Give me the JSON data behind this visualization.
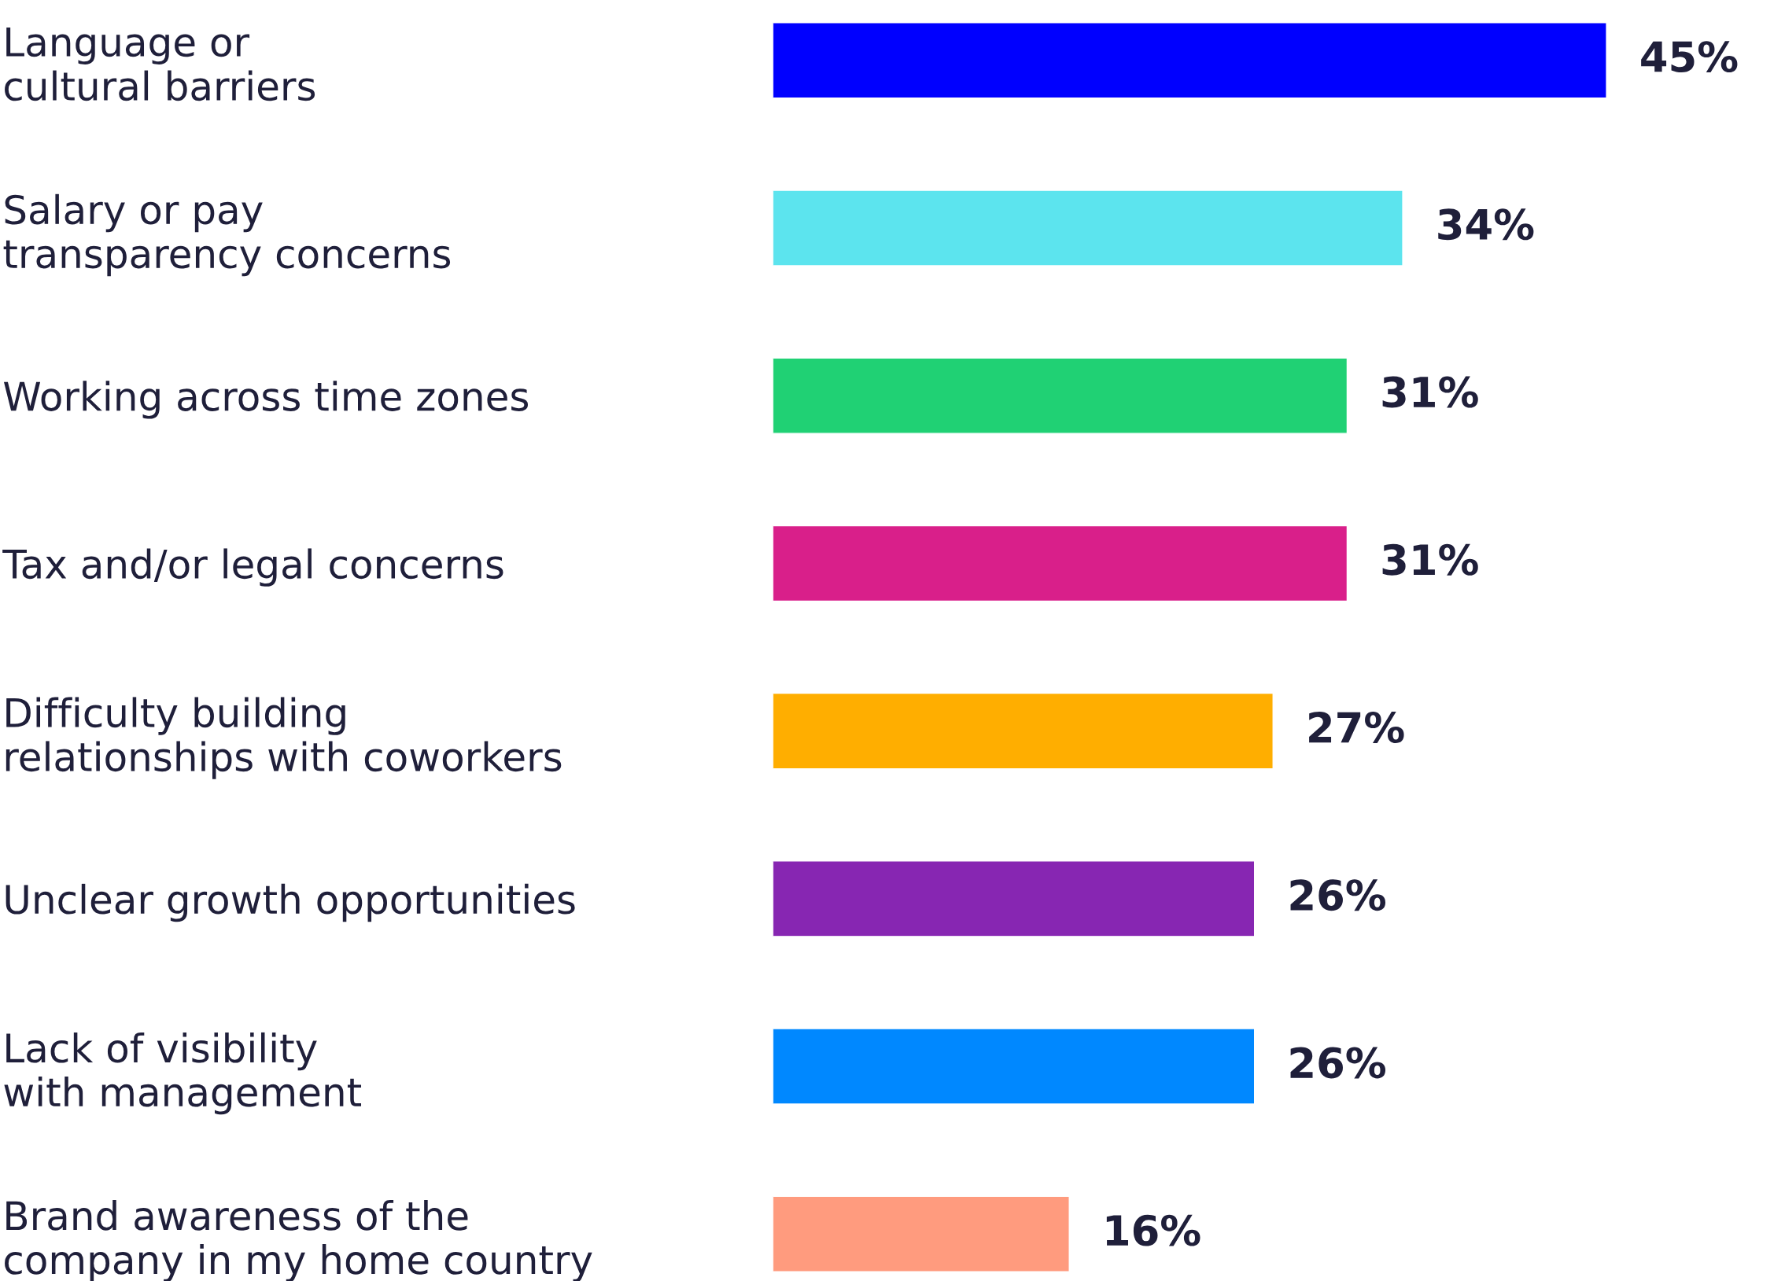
{
  "chart_data": {
    "type": "bar",
    "orientation": "horizontal",
    "tick_labels": "y",
    "grid": false,
    "legend": false,
    "categories": [
      "Language or\ncultural barriers",
      "Salary or pay\ntransparency concerns",
      "Working across time zones",
      "Tax and/or legal concerns",
      "Difficulty building\nrelationships with coworkers",
      "Unclear growth opportunities",
      "Lack of visibility\nwith management",
      "Brand awareness of the\ncompany in my home country"
    ],
    "values": [
      45,
      34,
      31,
      31,
      27,
      26,
      26,
      16
    ],
    "value_labels": [
      "45%",
      "34%",
      "31%",
      "31%",
      "27%",
      "26%",
      "26%",
      "16%"
    ],
    "colors": [
      "#0000ff",
      "#5ce4ee",
      "#20d174",
      "#d91f8a",
      "#ffae00",
      "#8726b2",
      "#0088ff",
      "#ff9b7e"
    ]
  }
}
